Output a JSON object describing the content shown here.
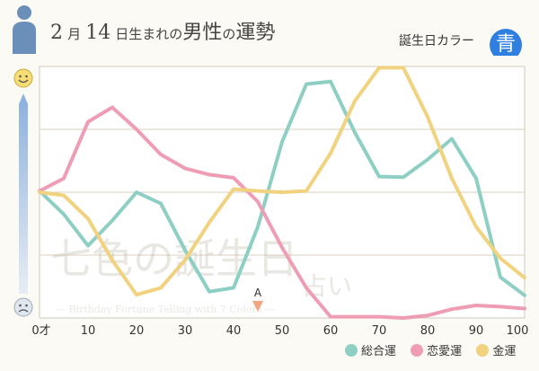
{
  "header": {
    "month": "2",
    "month_unit": "月",
    "day": "14",
    "day_unit": "日生まれの",
    "gender": "男性",
    "particle": "の",
    "fortune": "運勢",
    "birth_color_label": "誕生日カラー",
    "birth_color_value": "青",
    "birth_color_hex": "#2f7fe0"
  },
  "watermark": {
    "text1": "七色の誕生日",
    "text2": "占い",
    "subtitle": "— Birthday Fortune Telling with 7 Colors —"
  },
  "marker": {
    "label": "A",
    "age": 45
  },
  "chart_data": {
    "type": "line",
    "x": [
      0,
      5,
      10,
      15,
      20,
      25,
      30,
      35,
      40,
      45,
      50,
      55,
      60,
      65,
      70,
      75,
      80,
      85,
      90,
      95,
      100
    ],
    "xticks": [
      0,
      10,
      20,
      30,
      40,
      50,
      60,
      70,
      80,
      90,
      100
    ],
    "xtick_suffix_zero": "才",
    "xlim": [
      0,
      100
    ],
    "ylim": [
      -2,
      2
    ],
    "grid": true,
    "legend_position": "bottom-right",
    "series": [
      {
        "name": "総合運",
        "color": "#8ecfc4",
        "values": [
          0.02,
          -0.35,
          -0.85,
          -0.45,
          0.0,
          -0.18,
          -0.92,
          -1.58,
          -1.52,
          -0.55,
          0.8,
          1.72,
          1.76,
          0.95,
          0.25,
          0.24,
          0.52,
          0.85,
          0.22,
          -1.35,
          -1.64
        ]
      },
      {
        "name": "恋愛運",
        "color": "#ee9db5",
        "values": [
          0.02,
          0.22,
          1.12,
          1.35,
          1.0,
          0.6,
          0.38,
          0.28,
          0.23,
          -0.15,
          -0.88,
          -1.52,
          -1.98,
          -1.98,
          -1.98,
          -2.0,
          -1.96,
          -1.86,
          -1.8,
          -1.82,
          -1.85
        ]
      },
      {
        "name": "金運",
        "color": "#f1d27e",
        "values": [
          0.0,
          -0.05,
          -0.42,
          -1.08,
          -1.63,
          -1.52,
          -1.08,
          -0.48,
          0.05,
          0.02,
          0.0,
          0.02,
          0.62,
          1.45,
          1.98,
          1.98,
          1.2,
          0.22,
          -0.55,
          -1.05,
          -1.36
        ]
      }
    ]
  }
}
